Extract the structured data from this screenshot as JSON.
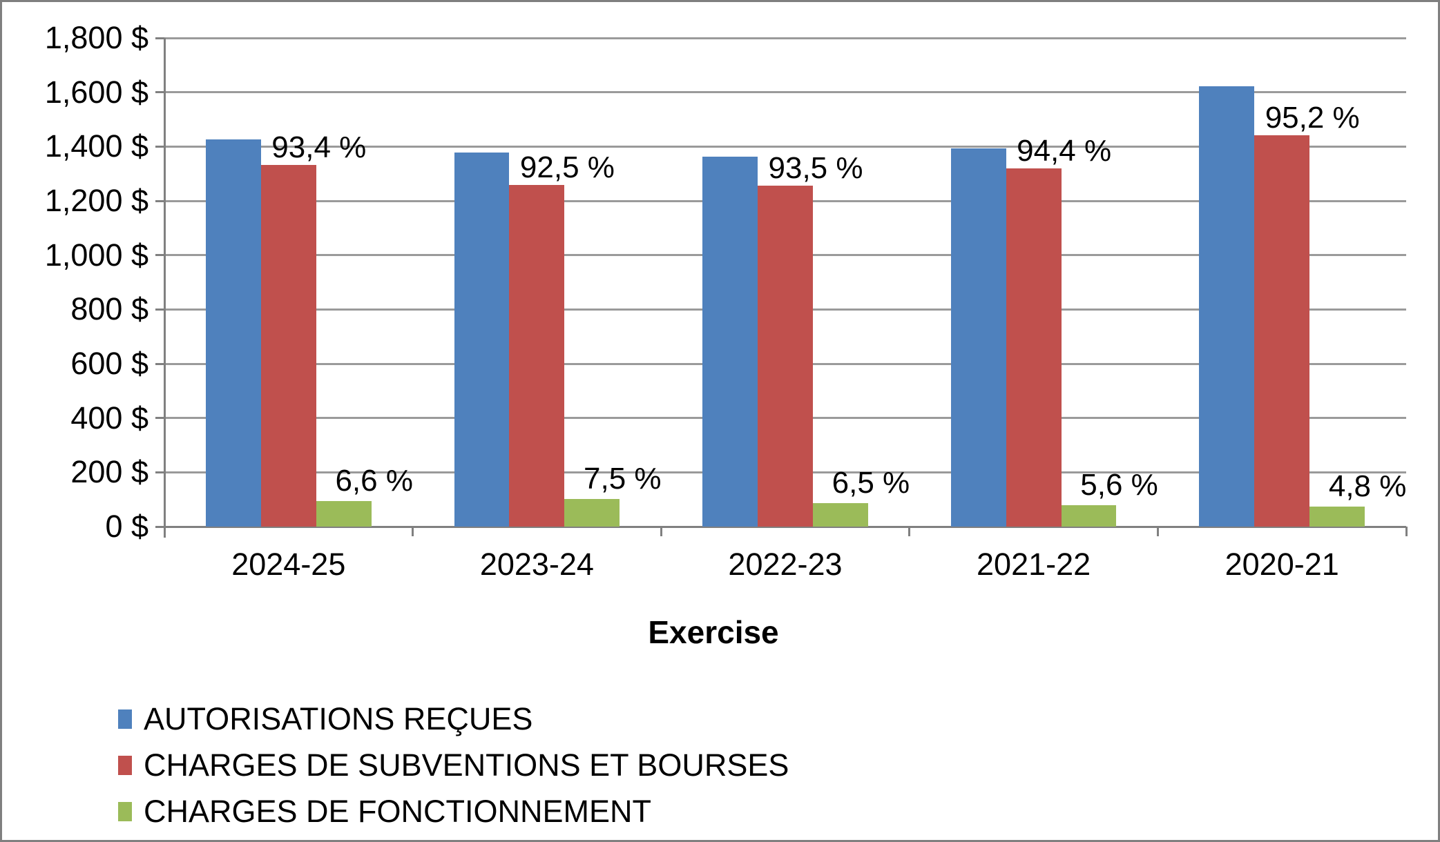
{
  "chart_data": {
    "type": "bar",
    "title": "",
    "xlabel": "Exercise",
    "ylabel": "",
    "categories": [
      "2024-25",
      "2023-24",
      "2022-23",
      "2021-22",
      "2020-21"
    ],
    "series": [
      {
        "name": "AUTORISATIONS REÇUES",
        "color": "#4F81BD",
        "values": [
          1426,
          1378,
          1362,
          1393,
          1622
        ],
        "labels": [
          "",
          "",
          "",
          "",
          ""
        ]
      },
      {
        "name": "CHARGES DE SUBVENTIONS ET BOURSES",
        "color": "#C0504D",
        "values": [
          1333,
          1259,
          1256,
          1319,
          1442
        ],
        "labels": [
          "93,4 %",
          "92,5 %",
          "93,5 %",
          "94,4 %",
          "95,2 %"
        ]
      },
      {
        "name": "CHARGES DE FONCTIONNEMENT",
        "color": "#9BBB59",
        "values": [
          94,
          102,
          87,
          78,
          73
        ],
        "labels": [
          "6,6 %",
          "7,5 %",
          "6,5 %",
          "5,6 %",
          "4,8 %"
        ]
      }
    ],
    "ylim": [
      0,
      1800
    ],
    "ytick_step": 200,
    "ytick_labels": [
      "0 $",
      "200 $",
      "400 $",
      "600 $",
      "800 $",
      "1,000 $",
      "1,200 $",
      "1,400 $",
      "1,600 $",
      "1,800 $"
    ],
    "grid": true,
    "legend_position": "bottom-left"
  },
  "colors": {
    "series_blue": "#4F81BD",
    "series_red": "#C0504D",
    "series_green": "#9BBB59",
    "gridline": "#9A9A9A",
    "axis": "#808080",
    "border": "#7F7F7F",
    "text": "#000000",
    "background": "#FFFFFF"
  }
}
